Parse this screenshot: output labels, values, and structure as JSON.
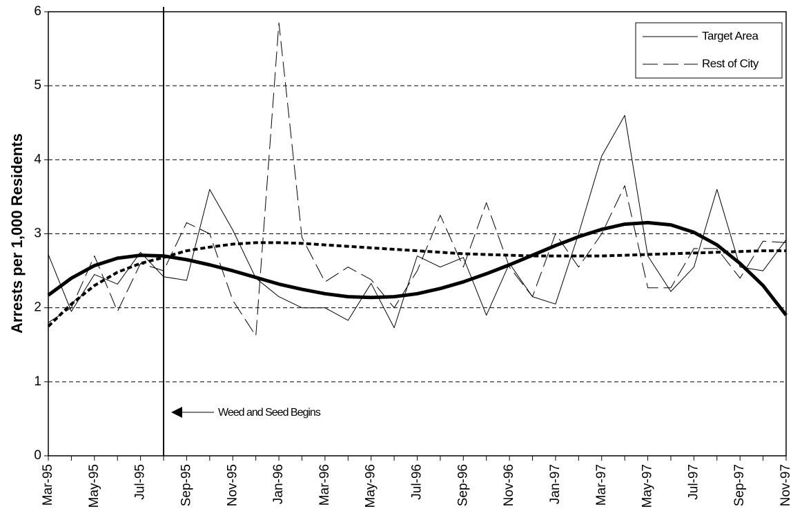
{
  "chart_data": {
    "type": "line",
    "y_label": "Arrests per 1,000 Residents",
    "annotation": "Weed and Seed Begins",
    "categories": [
      "Mar-95",
      null,
      "May-95",
      null,
      "Jul-95",
      null,
      "Sep-95",
      null,
      "Nov-95",
      null,
      "Jan-96",
      null,
      "Mar-96",
      null,
      "May-96",
      null,
      "Jul-96",
      null,
      "Sep-96",
      null,
      "Nov-96",
      null,
      "Jan-97",
      null,
      "Mar-97",
      null,
      "May-97",
      null,
      "Jul-97",
      null,
      "Sep-97",
      null,
      "Nov-97"
    ],
    "series": [
      {
        "name": "Target Area",
        "color": "#000000",
        "dashed": false,
        "trend": false,
        "values": [
          2.72,
          1.95,
          2.45,
          2.32,
          2.75,
          2.42,
          2.37,
          3.6,
          3.05,
          2.4,
          2.15,
          2.0,
          2.0,
          1.83,
          2.33,
          1.73,
          2.7,
          2.55,
          2.68,
          1.9,
          2.6,
          2.15,
          2.05,
          3.0,
          4.05,
          4.6,
          2.7,
          2.22,
          2.55,
          3.6,
          2.55,
          2.5,
          2.92
        ]
      },
      {
        "name": "Rest of City",
        "color": "#000000",
        "dashed": true,
        "trend": false,
        "values": [
          1.8,
          2.0,
          2.7,
          1.95,
          2.6,
          2.5,
          3.15,
          3.0,
          2.1,
          1.62,
          5.85,
          2.95,
          2.35,
          2.55,
          2.38,
          2.0,
          2.5,
          3.25,
          2.55,
          3.42,
          2.55,
          2.15,
          3.0,
          2.55,
          3.0,
          3.65,
          2.27,
          2.27,
          2.8,
          2.8,
          2.4,
          2.9,
          2.88
        ]
      },
      {
        "color": "#000000",
        "dashed": false,
        "trend": true,
        "values": [
          2.17,
          2.4,
          2.57,
          2.67,
          2.71,
          2.7,
          2.65,
          2.58,
          2.5,
          2.41,
          2.32,
          2.25,
          2.19,
          2.15,
          2.14,
          2.15,
          2.19,
          2.26,
          2.35,
          2.46,
          2.58,
          2.71,
          2.84,
          2.96,
          3.06,
          3.13,
          3.15,
          3.12,
          3.02,
          2.85,
          2.6,
          2.3,
          1.9
        ]
      },
      {
        "color": "#000000",
        "dashed": true,
        "trend": true,
        "values": [
          1.75,
          2.05,
          2.3,
          2.48,
          2.6,
          2.68,
          2.77,
          2.82,
          2.86,
          2.88,
          2.88,
          2.87,
          2.85,
          2.83,
          2.81,
          2.79,
          2.77,
          2.75,
          2.73,
          2.72,
          2.71,
          2.7,
          2.7,
          2.7,
          2.7,
          2.71,
          2.72,
          2.73,
          2.74,
          2.75,
          2.76,
          2.77,
          2.77
        ]
      }
    ],
    "ylim": [
      0,
      6
    ],
    "yticks": [
      0,
      1,
      2,
      3,
      4,
      5,
      6
    ],
    "grid": true,
    "legend": "top-right"
  }
}
